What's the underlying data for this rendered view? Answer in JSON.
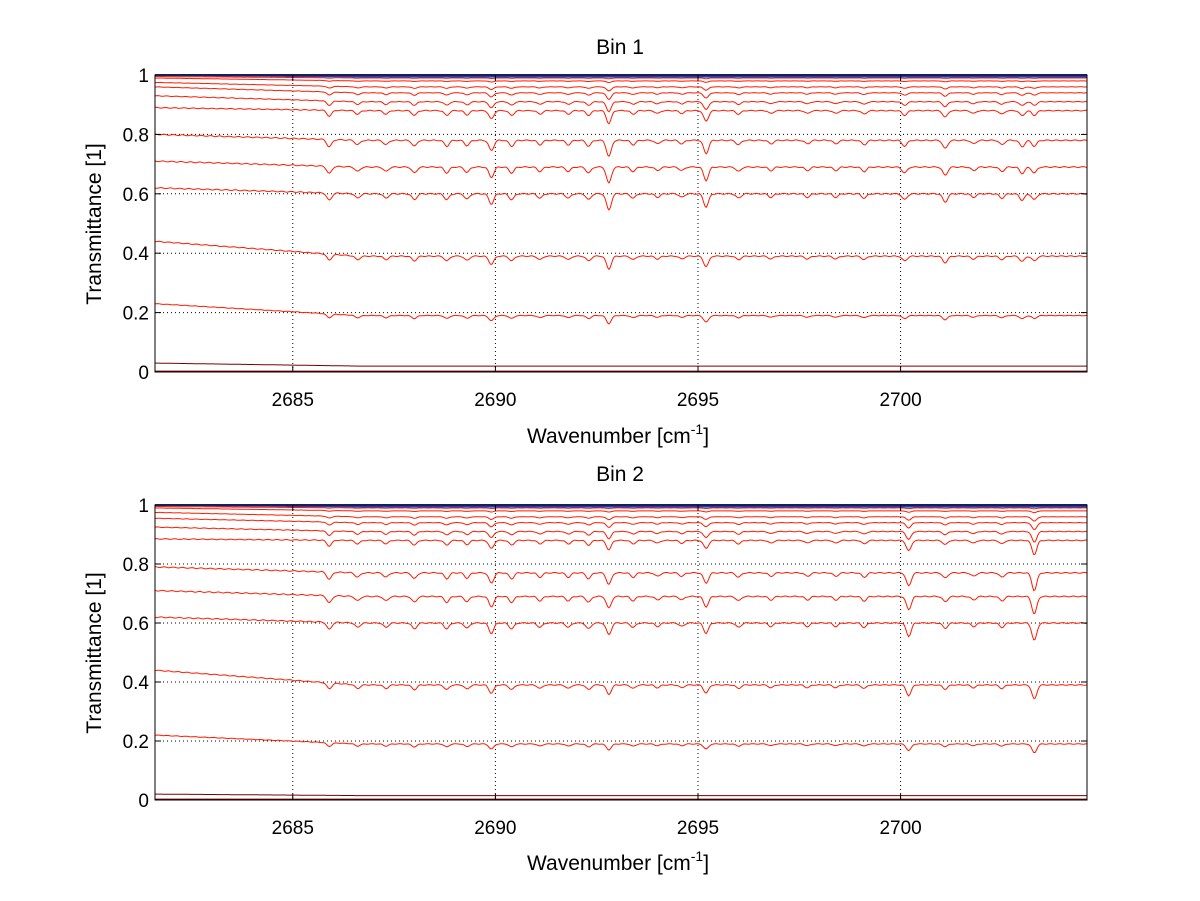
{
  "figure": {
    "background": "#ffffff",
    "colors": {
      "blue_cluster": "#1f3fbf",
      "red_series": "#ff1a00",
      "dark_red_series": "#7a0000",
      "grid": "#000000"
    }
  },
  "chart_data": [
    {
      "type": "line",
      "title": "Bin 1",
      "xlabel": "Wavenumber [cm",
      "xlabel_sup": "-1",
      "xlabel_close": "]",
      "ylabel": "Transmittance [1]",
      "xlim": [
        2681.6,
        2704.6
      ],
      "ylim": [
        0,
        1
      ],
      "xticks": [
        2685,
        2690,
        2695,
        2700
      ],
      "xtick_labels": [
        "2685",
        "2690",
        "2695",
        "2700"
      ],
      "yticks": [
        0,
        0.2,
        0.4,
        0.6,
        0.8,
        1
      ],
      "ytick_labels": [
        "0",
        "0.2",
        "0.4",
        "0.6",
        "0.8",
        "1"
      ],
      "grid": true,
      "grid_style": "dotted",
      "lines": [
        {
          "level": 1.0,
          "start": 1.0,
          "absorption_scale": 0.0,
          "color": "blue"
        },
        {
          "level": 0.995,
          "start": 1.0,
          "absorption_scale": 0.01,
          "color": "blue"
        },
        {
          "level": 0.99,
          "start": 0.995,
          "absorption_scale": 0.05,
          "color": "red"
        },
        {
          "level": 0.98,
          "start": 0.99,
          "absorption_scale": 0.1,
          "color": "red"
        },
        {
          "level": 0.96,
          "start": 0.975,
          "absorption_scale": 0.25,
          "color": "red"
        },
        {
          "level": 0.94,
          "start": 0.96,
          "absorption_scale": 0.4,
          "color": "red"
        },
        {
          "level": 0.91,
          "start": 0.93,
          "absorption_scale": 0.6,
          "color": "red"
        },
        {
          "level": 0.88,
          "start": 0.89,
          "absorption_scale": 0.8,
          "color": "red"
        },
        {
          "level": 0.78,
          "start": 0.8,
          "absorption_scale": 1.0,
          "color": "red"
        },
        {
          "level": 0.69,
          "start": 0.71,
          "absorption_scale": 1.0,
          "color": "red"
        },
        {
          "level": 0.6,
          "start": 0.62,
          "absorption_scale": 1.0,
          "color": "red"
        },
        {
          "level": 0.39,
          "start": 0.44,
          "absorption_scale": 0.8,
          "color": "red"
        },
        {
          "level": 0.19,
          "start": 0.23,
          "absorption_scale": 0.5,
          "color": "red"
        },
        {
          "level": 0.02,
          "start": 0.03,
          "absorption_scale": 0.0,
          "color": "darkred"
        },
        {
          "level": 0.003,
          "start": 0.003,
          "absorption_scale": 0.0,
          "color": "darkred"
        }
      ],
      "absorption_lines": [
        {
          "x": 2685.9,
          "depth": 0.025
        },
        {
          "x": 2686.6,
          "depth": 0.015
        },
        {
          "x": 2687.3,
          "depth": 0.015
        },
        {
          "x": 2688.0,
          "depth": 0.02
        },
        {
          "x": 2688.8,
          "depth": 0.02
        },
        {
          "x": 2689.3,
          "depth": 0.018
        },
        {
          "x": 2689.9,
          "depth": 0.035
        },
        {
          "x": 2690.4,
          "depth": 0.02
        },
        {
          "x": 2691.1,
          "depth": 0.015
        },
        {
          "x": 2691.8,
          "depth": 0.015
        },
        {
          "x": 2692.3,
          "depth": 0.02
        },
        {
          "x": 2692.8,
          "depth": 0.055
        },
        {
          "x": 2693.4,
          "depth": 0.015
        },
        {
          "x": 2694.0,
          "depth": 0.012
        },
        {
          "x": 2694.6,
          "depth": 0.012
        },
        {
          "x": 2695.2,
          "depth": 0.045
        },
        {
          "x": 2696.0,
          "depth": 0.015
        },
        {
          "x": 2696.8,
          "depth": 0.012
        },
        {
          "x": 2697.7,
          "depth": 0.012
        },
        {
          "x": 2698.4,
          "depth": 0.012
        },
        {
          "x": 2699.1,
          "depth": 0.015
        },
        {
          "x": 2700.1,
          "depth": 0.02
        },
        {
          "x": 2701.1,
          "depth": 0.028
        },
        {
          "x": 2701.8,
          "depth": 0.012
        },
        {
          "x": 2702.5,
          "depth": 0.015
        },
        {
          "x": 2703.0,
          "depth": 0.022
        },
        {
          "x": 2703.3,
          "depth": 0.02
        }
      ]
    },
    {
      "type": "line",
      "title": "Bin 2",
      "xlabel": "Wavenumber [cm",
      "xlabel_sup": "-1",
      "xlabel_close": "]",
      "ylabel": "Transmittance [1]",
      "xlim": [
        2681.6,
        2704.6
      ],
      "ylim": [
        0,
        1
      ],
      "xticks": [
        2685,
        2690,
        2695,
        2700
      ],
      "xtick_labels": [
        "2685",
        "2690",
        "2695",
        "2700"
      ],
      "yticks": [
        0,
        0.2,
        0.4,
        0.6,
        0.8,
        1
      ],
      "ytick_labels": [
        "0",
        "0.2",
        "0.4",
        "0.6",
        "0.8",
        "1"
      ],
      "grid": true,
      "grid_style": "dotted",
      "lines": [
        {
          "level": 1.0,
          "start": 1.0,
          "absorption_scale": 0.0,
          "color": "blue"
        },
        {
          "level": 0.995,
          "start": 1.0,
          "absorption_scale": 0.01,
          "color": "blue"
        },
        {
          "level": 0.99,
          "start": 0.995,
          "absorption_scale": 0.05,
          "color": "red"
        },
        {
          "level": 0.98,
          "start": 0.99,
          "absorption_scale": 0.1,
          "color": "red"
        },
        {
          "level": 0.96,
          "start": 0.975,
          "absorption_scale": 0.25,
          "color": "red"
        },
        {
          "level": 0.94,
          "start": 0.955,
          "absorption_scale": 0.4,
          "color": "red"
        },
        {
          "level": 0.91,
          "start": 0.925,
          "absorption_scale": 0.6,
          "color": "red"
        },
        {
          "level": 0.88,
          "start": 0.885,
          "absorption_scale": 0.8,
          "color": "red"
        },
        {
          "level": 0.77,
          "start": 0.79,
          "absorption_scale": 1.0,
          "color": "red"
        },
        {
          "level": 0.69,
          "start": 0.71,
          "absorption_scale": 1.0,
          "color": "red"
        },
        {
          "level": 0.6,
          "start": 0.62,
          "absorption_scale": 1.0,
          "color": "red"
        },
        {
          "level": 0.39,
          "start": 0.44,
          "absorption_scale": 0.8,
          "color": "red"
        },
        {
          "level": 0.19,
          "start": 0.22,
          "absorption_scale": 0.5,
          "color": "red"
        },
        {
          "level": 0.015,
          "start": 0.02,
          "absorption_scale": 0.0,
          "color": "darkred"
        },
        {
          "level": 0.003,
          "start": 0.003,
          "absorption_scale": 0.0,
          "color": "darkred"
        }
      ],
      "absorption_lines": [
        {
          "x": 2685.9,
          "depth": 0.025
        },
        {
          "x": 2686.6,
          "depth": 0.015
        },
        {
          "x": 2687.3,
          "depth": 0.015
        },
        {
          "x": 2688.0,
          "depth": 0.02
        },
        {
          "x": 2688.8,
          "depth": 0.02
        },
        {
          "x": 2689.3,
          "depth": 0.018
        },
        {
          "x": 2689.9,
          "depth": 0.035
        },
        {
          "x": 2690.4,
          "depth": 0.02
        },
        {
          "x": 2691.1,
          "depth": 0.015
        },
        {
          "x": 2691.8,
          "depth": 0.015
        },
        {
          "x": 2692.3,
          "depth": 0.02
        },
        {
          "x": 2692.8,
          "depth": 0.04
        },
        {
          "x": 2693.4,
          "depth": 0.015
        },
        {
          "x": 2694.0,
          "depth": 0.012
        },
        {
          "x": 2694.6,
          "depth": 0.012
        },
        {
          "x": 2695.2,
          "depth": 0.035
        },
        {
          "x": 2696.0,
          "depth": 0.015
        },
        {
          "x": 2696.8,
          "depth": 0.012
        },
        {
          "x": 2697.7,
          "depth": 0.012
        },
        {
          "x": 2698.4,
          "depth": 0.012
        },
        {
          "x": 2699.1,
          "depth": 0.015
        },
        {
          "x": 2700.2,
          "depth": 0.045
        },
        {
          "x": 2701.1,
          "depth": 0.018
        },
        {
          "x": 2701.8,
          "depth": 0.012
        },
        {
          "x": 2702.5,
          "depth": 0.015
        },
        {
          "x": 2703.3,
          "depth": 0.06
        }
      ]
    }
  ]
}
